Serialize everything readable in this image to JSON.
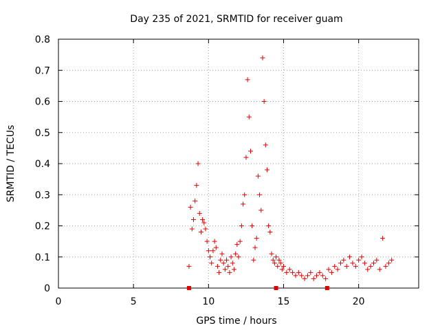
{
  "chart_data": {
    "type": "scatter",
    "title": "Day 235 of 2021, SRMTID for receiver guam",
    "xlabel": "GPS time / hours",
    "ylabel": "SRMTID / TECUs",
    "xlim": [
      0,
      24
    ],
    "ylim": [
      0,
      0.8
    ],
    "xticks": [
      "0",
      "5",
      "10",
      "15",
      "20"
    ],
    "xtick_values": [
      0,
      5,
      10,
      15,
      20
    ],
    "yticks": [
      "0",
      "0.1",
      "0.2",
      "0.3",
      "0.4",
      "0.5",
      "0.6",
      "0.7",
      "0.8"
    ],
    "ytick_values": [
      0,
      0.1,
      0.2,
      0.3,
      0.4,
      0.5,
      0.6,
      0.7,
      0.8
    ],
    "grid": true,
    "marker": "+",
    "color": "#e00000",
    "series": [
      {
        "name": "SRMTID",
        "x": [
          8.7,
          8.8,
          8.9,
          9.0,
          9.1,
          9.2,
          9.3,
          9.4,
          9.5,
          9.6,
          9.7,
          9.8,
          9.9,
          10.0,
          10.1,
          10.2,
          10.3,
          10.4,
          10.5,
          10.6,
          10.7,
          10.8,
          10.9,
          11.0,
          11.1,
          11.2,
          11.3,
          11.4,
          11.5,
          11.6,
          11.7,
          11.8,
          11.9,
          12.0,
          12.1,
          12.2,
          12.3,
          12.4,
          12.5,
          12.6,
          12.7,
          12.8,
          12.9,
          13.0,
          13.1,
          13.2,
          13.3,
          13.4,
          13.5,
          13.6,
          13.7,
          13.8,
          13.9,
          14.0,
          14.1,
          14.2,
          14.3,
          14.4,
          14.5,
          14.6,
          14.7,
          14.8,
          14.9,
          15.0,
          15.2,
          15.4,
          15.6,
          15.8,
          16.0,
          16.2,
          16.4,
          16.6,
          16.8,
          17.0,
          17.2,
          17.4,
          17.6,
          17.8,
          18.0,
          18.2,
          18.4,
          18.6,
          18.8,
          19.0,
          19.2,
          19.4,
          19.6,
          19.8,
          20.0,
          20.2,
          20.4,
          20.6,
          20.8,
          21.0,
          21.2,
          21.4,
          21.6,
          21.8,
          22.0,
          22.2
        ],
        "y": [
          0.07,
          0.26,
          0.19,
          0.22,
          0.28,
          0.33,
          0.4,
          0.24,
          0.18,
          0.22,
          0.21,
          0.19,
          0.15,
          0.12,
          0.1,
          0.08,
          0.12,
          0.15,
          0.13,
          0.07,
          0.05,
          0.09,
          0.11,
          0.08,
          0.06,
          0.09,
          0.07,
          0.05,
          0.1,
          0.08,
          0.06,
          0.11,
          0.14,
          0.1,
          0.15,
          0.2,
          0.27,
          0.3,
          0.42,
          0.67,
          0.55,
          0.44,
          0.2,
          0.09,
          0.13,
          0.16,
          0.36,
          0.3,
          0.25,
          0.74,
          0.6,
          0.46,
          0.38,
          0.2,
          0.18,
          0.11,
          0.09,
          0.08,
          0.1,
          0.07,
          0.09,
          0.08,
          0.06,
          0.07,
          0.05,
          0.06,
          0.05,
          0.04,
          0.05,
          0.04,
          0.03,
          0.04,
          0.05,
          0.03,
          0.04,
          0.05,
          0.04,
          0.03,
          0.06,
          0.05,
          0.07,
          0.06,
          0.08,
          0.09,
          0.07,
          0.1,
          0.08,
          0.07,
          0.09,
          0.1,
          0.08,
          0.06,
          0.07,
          0.08,
          0.09,
          0.06,
          0.16,
          0.07,
          0.08,
          0.09
        ]
      }
    ],
    "ground_markers_x": [
      8.7,
      14.5,
      17.9
    ]
  }
}
